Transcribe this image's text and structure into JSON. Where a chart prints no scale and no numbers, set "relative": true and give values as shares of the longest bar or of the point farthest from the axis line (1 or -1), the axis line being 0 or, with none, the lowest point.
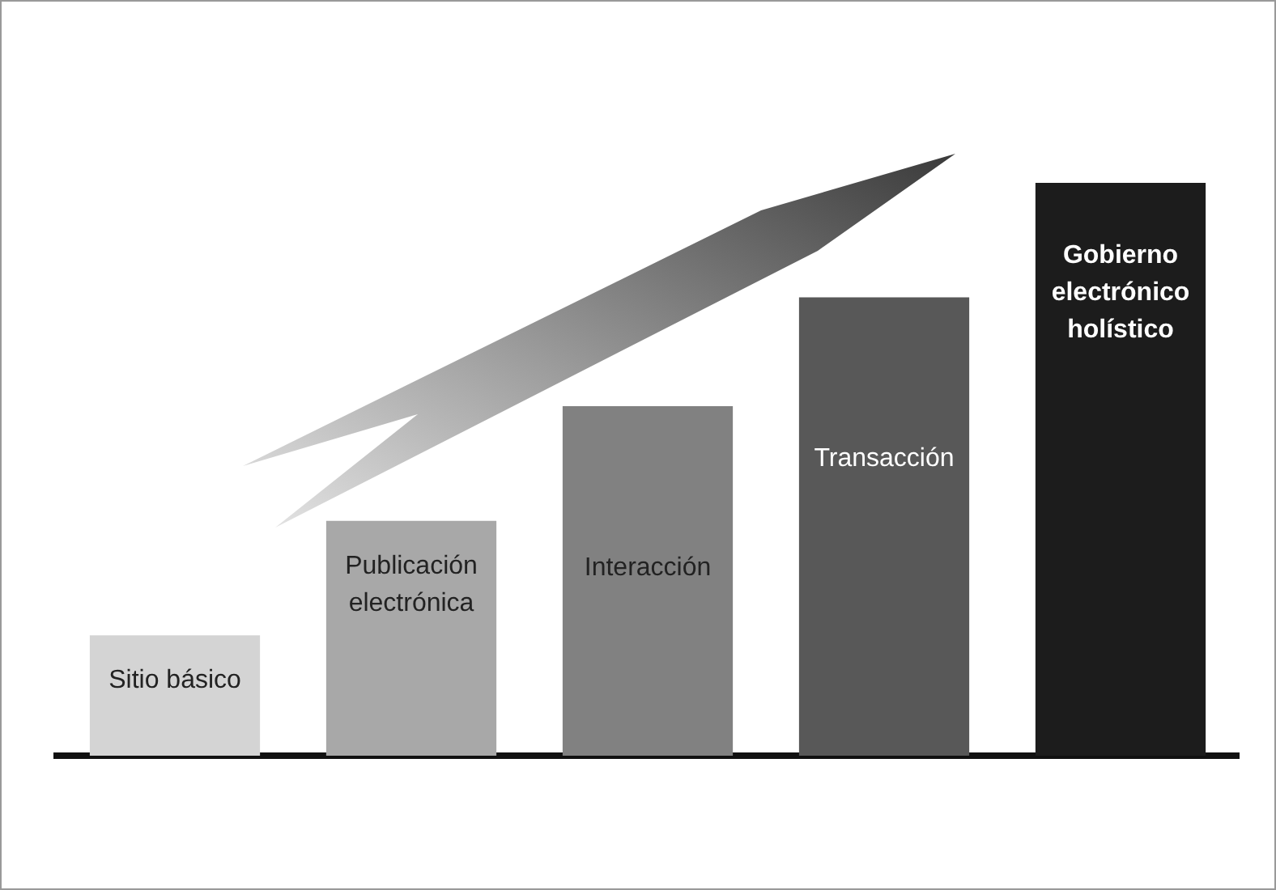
{
  "chart_data": {
    "type": "bar",
    "relative": true,
    "categories": [
      "Sitio básico",
      "Publicación electrónica",
      "Interacción",
      "Transacción",
      "Gobierno electrónico holístico"
    ],
    "values": [
      0.21,
      0.41,
      0.61,
      0.8,
      1
    ],
    "colors": [
      "#d4d4d4",
      "#a8a8a8",
      "#818181",
      "#585858",
      "#1c1c1c"
    ],
    "grid": false,
    "legend": false
  }
}
